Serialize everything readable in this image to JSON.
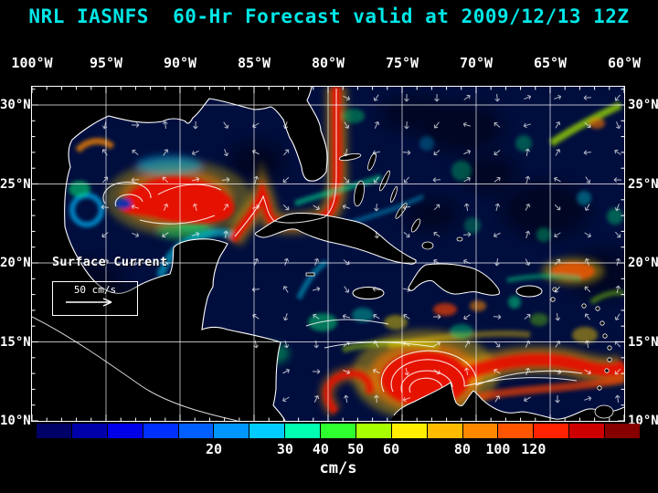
{
  "title": "NRL IASNFS  60-Hr Forecast valid at 2009/12/13 12Z",
  "map": {
    "lon_labels": [
      "100°W",
      "95°W",
      "90°W",
      "85°W",
      "80°W",
      "75°W",
      "70°W",
      "65°W",
      "60°W"
    ],
    "lat_labels": [
      "30°N",
      "25°N",
      "20°N",
      "15°N",
      "10°N"
    ],
    "legend_title": "Surface Current",
    "scale_label": "50 cm/s"
  },
  "colorbar": {
    "unit": "cm/s",
    "segments": [
      "#000066",
      "#0000AA",
      "#0000E8",
      "#0030FF",
      "#0060FF",
      "#0096FF",
      "#00CCFF",
      "#00FFB0",
      "#2EFF2E",
      "#A8FF00",
      "#FFEE00",
      "#FFBB00",
      "#FF8800",
      "#FF5500",
      "#FF2200",
      "#CC0000",
      "#860000"
    ],
    "ticks": [
      {
        "label": "20",
        "pos": 0.294
      },
      {
        "label": "30",
        "pos": 0.412
      },
      {
        "label": "40",
        "pos": 0.471
      },
      {
        "label": "50",
        "pos": 0.529
      },
      {
        "label": "60",
        "pos": 0.588
      },
      {
        "label": "80",
        "pos": 0.706
      },
      {
        "label": "100",
        "pos": 0.765
      },
      {
        "label": "120",
        "pos": 0.824
      }
    ]
  },
  "colors": {
    "background": "#000000",
    "title_text": "#00E6E6",
    "axis_text": "#FFFFFF",
    "ocean_base": "#000E3E"
  }
}
